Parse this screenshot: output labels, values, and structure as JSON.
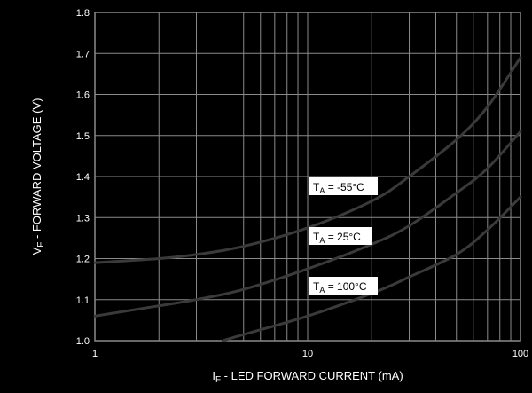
{
  "chart_data": {
    "type": "line",
    "x_scale": "log",
    "xlim": [
      1,
      100
    ],
    "ylim": [
      1.0,
      1.8
    ],
    "grid": true,
    "legend": "none",
    "x_ticks": [
      {
        "value": 1,
        "label": "1"
      },
      {
        "value": 10,
        "label": "10"
      },
      {
        "value": 100,
        "label": "100"
      }
    ],
    "y_ticks": [
      {
        "value": 1.0,
        "label": "1.0"
      },
      {
        "value": 1.1,
        "label": "1.1"
      },
      {
        "value": 1.2,
        "label": "1.2"
      },
      {
        "value": 1.3,
        "label": "1.3"
      },
      {
        "value": 1.4,
        "label": "1.4"
      },
      {
        "value": 1.5,
        "label": "1.5"
      },
      {
        "value": 1.6,
        "label": "1.6"
      },
      {
        "value": 1.7,
        "label": "1.7"
      },
      {
        "value": 1.8,
        "label": "1.8"
      }
    ],
    "xlabel": {
      "main": "I",
      "sub": "F",
      "rest": " - LED FORWARD CURRENT (mA)"
    },
    "ylabel": {
      "main": "V",
      "sub": "F",
      "rest": " - FORWARD VOLTAGE (V)"
    },
    "series": [
      {
        "label_main": "T",
        "label_sub": "A",
        "label_rest": " = -55°C",
        "points": [
          [
            1,
            1.19
          ],
          [
            2,
            1.2
          ],
          [
            3,
            1.21
          ],
          [
            5,
            1.23
          ],
          [
            10,
            1.275
          ],
          [
            20,
            1.34
          ],
          [
            30,
            1.4
          ],
          [
            50,
            1.49
          ],
          [
            70,
            1.57
          ],
          [
            100,
            1.69
          ]
        ]
      },
      {
        "label_main": "T",
        "label_sub": "A",
        "label_rest": " = 25°C",
        "points": [
          [
            1,
            1.06
          ],
          [
            2,
            1.085
          ],
          [
            3,
            1.1
          ],
          [
            5,
            1.125
          ],
          [
            10,
            1.175
          ],
          [
            20,
            1.235
          ],
          [
            30,
            1.28
          ],
          [
            50,
            1.36
          ],
          [
            70,
            1.42
          ],
          [
            100,
            1.51
          ]
        ]
      },
      {
        "label_main": "T",
        "label_sub": "A",
        "label_rest": " = 100°C",
        "points": [
          [
            4,
            1.0
          ],
          [
            5,
            1.015
          ],
          [
            10,
            1.06
          ],
          [
            20,
            1.115
          ],
          [
            30,
            1.155
          ],
          [
            50,
            1.21
          ],
          [
            70,
            1.27
          ],
          [
            100,
            1.35
          ]
        ]
      }
    ]
  },
  "colors": {
    "background": "#000000",
    "grid": "#8a8a8a",
    "curve": "#3a3a3a",
    "text": "#ffffff",
    "label_box": "#ffffff",
    "label_text": "#000000"
  }
}
